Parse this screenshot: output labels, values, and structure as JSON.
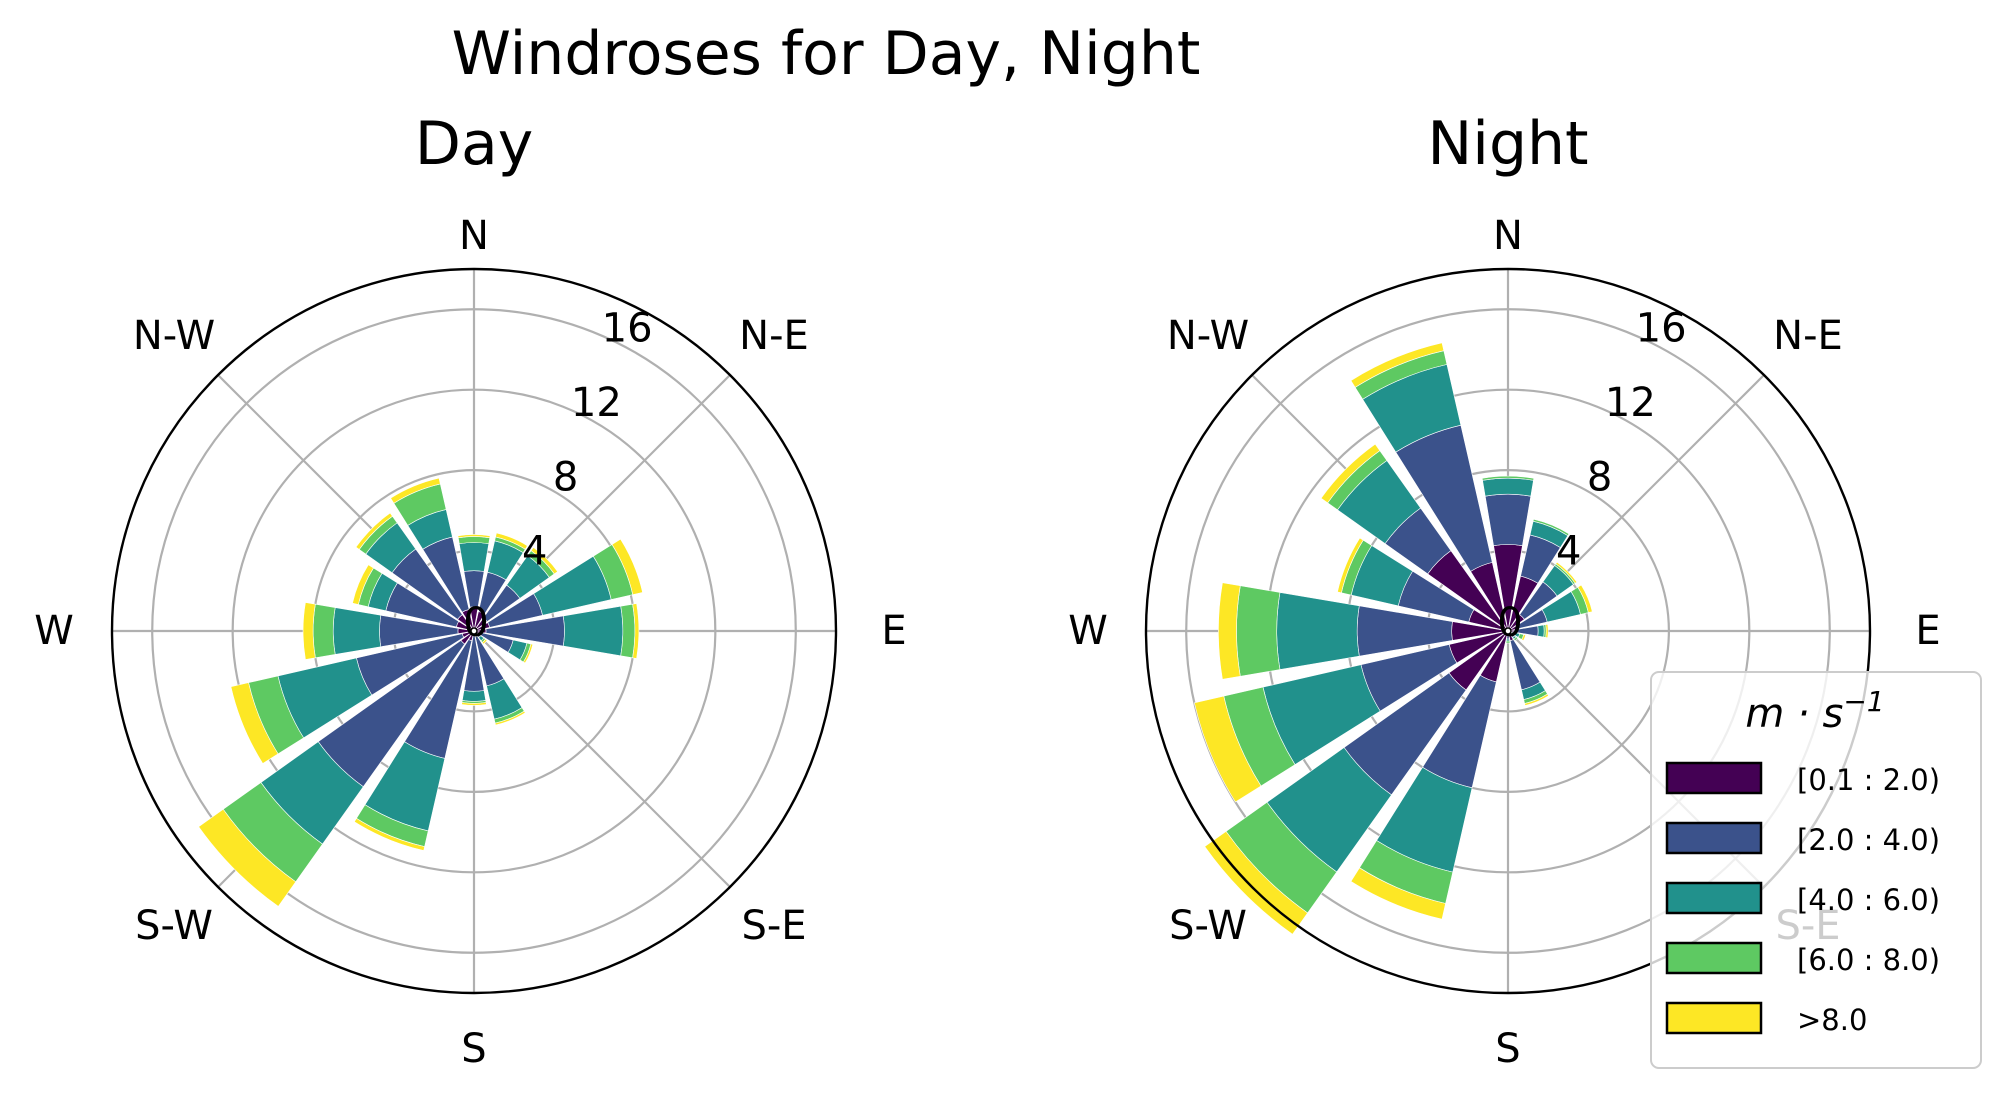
{
  "figure_title": "Windroses for Day, Night",
  "chart_data": {
    "type": "windrose",
    "title": "Windroses for Day, Night",
    "directions": [
      "N",
      "NNE",
      "NE",
      "ENE",
      "E",
      "ESE",
      "SE",
      "SSE",
      "S",
      "SSW",
      "SW",
      "WSW",
      "W",
      "WNW",
      "NW",
      "NNW"
    ],
    "direction_labels": [
      "N",
      "N-E",
      "E",
      "S-E",
      "S",
      "S-W",
      "W",
      "N-W"
    ],
    "radial_ticks": [
      0,
      4,
      8,
      12,
      16
    ],
    "radial_tick_labels": [
      "0",
      "4",
      "8",
      "12",
      "16"
    ],
    "rmax": 18,
    "grid": true,
    "legend": {
      "title_main": "m · s",
      "title_exp": "−1",
      "placement": "lower-right",
      "bins": [
        {
          "label": "[0.1 : 2.0)",
          "color": "#440154"
        },
        {
          "label": "[2.0 : 4.0)",
          "color": "#3b528b"
        },
        {
          "label": "[4.0 : 6.0)",
          "color": "#21918c"
        },
        {
          "label": "[6.0 : 8.0)",
          "color": "#5ec962"
        },
        {
          "label": ">8.0",
          "color": "#fde725"
        }
      ]
    },
    "subplots": [
      {
        "title": "Day",
        "cumulative": [
          [
            1.2,
            3.0,
            4.4,
            4.7,
            4.8
          ],
          [
            1.0,
            3.0,
            4.6,
            4.8,
            5.0
          ],
          [
            0.8,
            2.8,
            4.6,
            4.9,
            5.1
          ],
          [
            0.8,
            3.5,
            7.0,
            8.1,
            8.6
          ],
          [
            0.6,
            4.5,
            7.4,
            8.0,
            8.2
          ],
          [
            0.3,
            2.0,
            2.7,
            2.9,
            3.0
          ],
          [
            0.2,
            0.4,
            0.6,
            0.7,
            0.8
          ],
          [
            0.3,
            2.8,
            4.5,
            4.7,
            4.8
          ],
          [
            0.2,
            3.0,
            3.5,
            3.6,
            3.7
          ],
          [
            0.5,
            6.5,
            10.2,
            11.0,
            11.2
          ],
          [
            0.8,
            9.5,
            13.0,
            15.3,
            16.8
          ],
          [
            0.6,
            6.0,
            10.0,
            11.5,
            12.4
          ],
          [
            0.8,
            4.7,
            7.0,
            8.0,
            8.5
          ],
          [
            0.9,
            4.5,
            5.4,
            5.9,
            6.2
          ],
          [
            1.0,
            5.0,
            6.6,
            7.0,
            7.2
          ],
          [
            1.1,
            4.8,
            6.2,
            7.5,
            7.8
          ]
        ]
      },
      {
        "title": "Night",
        "cumulative": [
          [
            4.3,
            6.8,
            7.6,
            7.7,
            7.7
          ],
          [
            2.8,
            4.9,
            5.6,
            5.7,
            5.7
          ],
          [
            1.0,
            3.0,
            4.0,
            4.1,
            4.2
          ],
          [
            0.5,
            2.0,
            3.7,
            4.1,
            4.3
          ],
          [
            0.3,
            1.5,
            1.8,
            1.9,
            2.0
          ],
          [
            0.2,
            0.4,
            0.6,
            0.8,
            0.9
          ],
          [
            0.2,
            0.4,
            0.5,
            0.6,
            0.6
          ],
          [
            0.5,
            3.0,
            3.5,
            3.7,
            3.8
          ],
          [
            0.2,
            0.4,
            0.5,
            0.6,
            0.6
          ],
          [
            2.6,
            8.0,
            12.3,
            13.9,
            14.7
          ],
          [
            3.6,
            10.0,
            14.7,
            17.2,
            18.5
          ],
          [
            3.0,
            7.5,
            12.5,
            14.5,
            16.0
          ],
          [
            2.8,
            7.5,
            11.5,
            13.5,
            14.4
          ],
          [
            2.0,
            5.6,
            8.0,
            8.5,
            8.7
          ],
          [
            4.9,
            7.5,
            10.4,
            11.0,
            11.4
          ],
          [
            3.5,
            10.5,
            13.6,
            14.3,
            14.7
          ]
        ]
      }
    ]
  }
}
